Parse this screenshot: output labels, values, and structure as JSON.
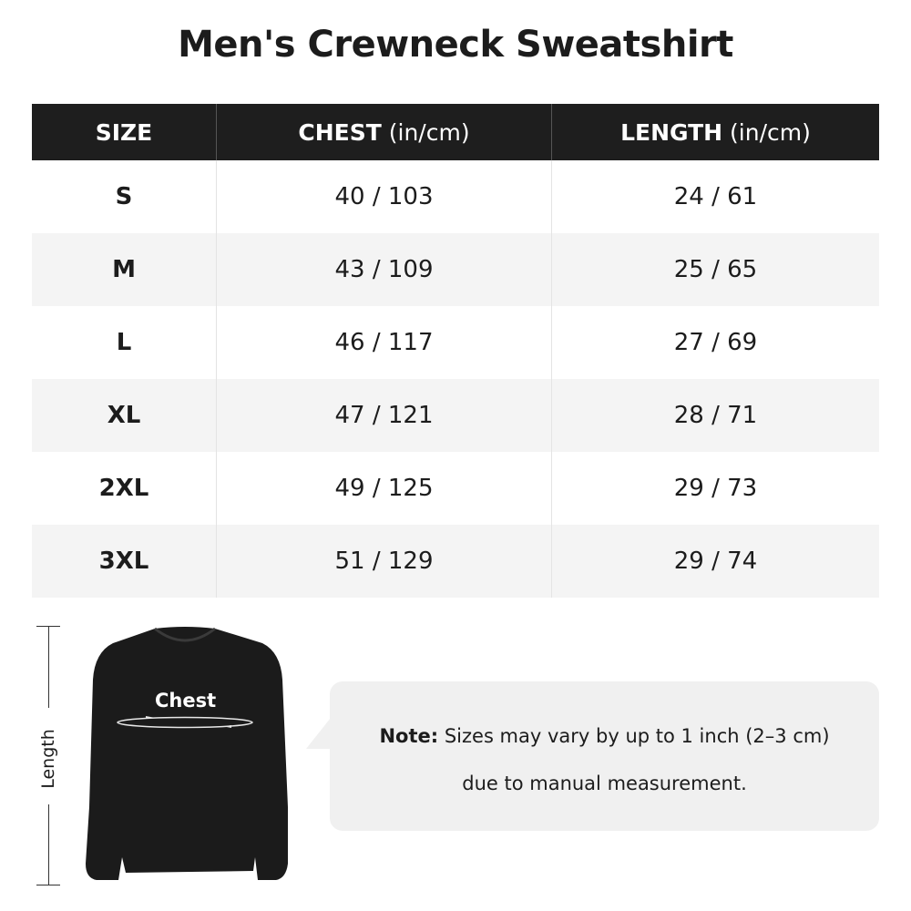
{
  "title": "Men's Crewneck Sweatshirt",
  "table": {
    "headers": [
      {
        "label": "SIZE",
        "unit": ""
      },
      {
        "label": "CHEST",
        "unit": " (in/cm)"
      },
      {
        "label": "LENGTH",
        "unit": " (in/cm)"
      }
    ],
    "rows": [
      [
        "S",
        "40 / 103",
        "24 / 61"
      ],
      [
        "M",
        "43 / 109",
        "25 / 65"
      ],
      [
        "L",
        "46 / 117",
        "27 / 69"
      ],
      [
        "XL",
        "47 / 121",
        "28 / 71"
      ],
      [
        "2XL",
        "49 / 125",
        "29 / 73"
      ],
      [
        "3XL",
        "51 / 129",
        "29 / 74"
      ]
    ]
  },
  "diagram": {
    "length_label": "Length",
    "chest_label": "Chest",
    "garment_color": "#1b1b1b"
  },
  "note": {
    "prefix": "Note:",
    "line1": " Sizes may vary by up to 1 inch (2–3 cm)",
    "line2": "due to manual measurement."
  }
}
